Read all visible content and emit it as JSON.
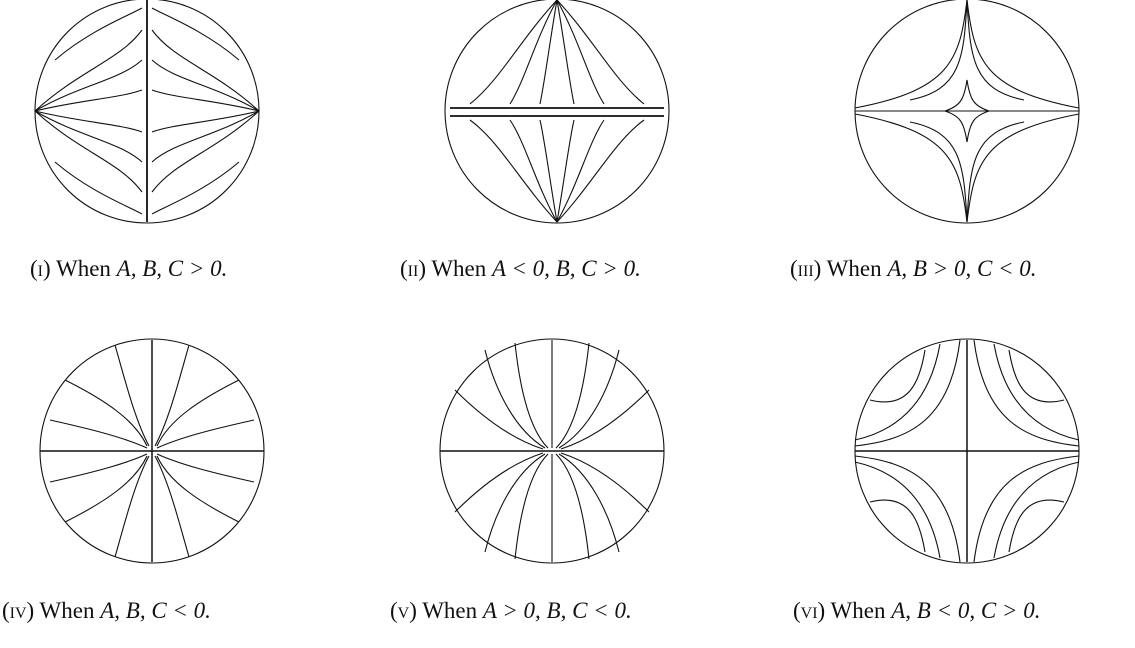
{
  "panels": [
    {
      "numeral": "(i)",
      "caption_prefix": "When",
      "condition": "A, B, C > 0.",
      "portrait": "vertical separatrix; source at left-right poles, two vortex lobes"
    },
    {
      "numeral": "(ii)",
      "caption_prefix": "When",
      "condition": "A < 0, B, C > 0.",
      "portrait": "horizontal separatrix; flow from poles toward equator"
    },
    {
      "numeral": "(iii)",
      "caption_prefix": "When",
      "condition": "A, B > 0, C < 0.",
      "portrait": "four-petal saddle with flow to top and bottom poles"
    },
    {
      "numeral": "(iv)",
      "caption_prefix": "When",
      "condition": "A, B, C < 0.",
      "portrait": "cross separatrix; flow from boundary toward center"
    },
    {
      "numeral": "(v)",
      "caption_prefix": "When",
      "condition": "A > 0, B, C < 0.",
      "portrait": "horizontal separatrix; flow from top and bottom toward equator"
    },
    {
      "numeral": "(vi)",
      "caption_prefix": "When",
      "condition": "A, B < 0, C > 0.",
      "portrait": "saddle; flow from sides to top and bottom"
    }
  ]
}
